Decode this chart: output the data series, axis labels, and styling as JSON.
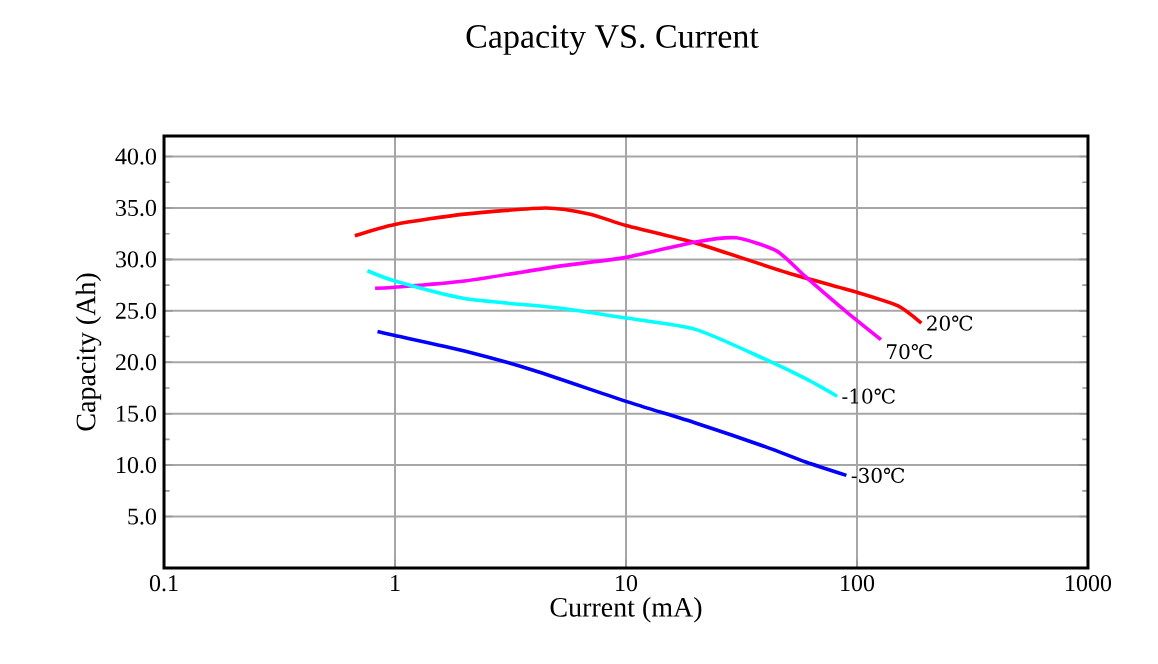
{
  "chart_data": {
    "type": "line",
    "title": "Capacity VS. Current",
    "xlabel": "Current (mA)",
    "ylabel": "Capacity (Ah)",
    "log": "x",
    "grid": true,
    "marker": "none",
    "line_style": "solid",
    "xlim": [
      0.1,
      1000
    ],
    "xticks": [
      0.1,
      1,
      10,
      100,
      1000
    ],
    "ylim": [
      0,
      42
    ],
    "yticks": [
      {
        "value": 5,
        "label": "5.0"
      },
      {
        "value": 10,
        "label": "10.0"
      },
      {
        "value": 15,
        "label": "15.0"
      },
      {
        "value": 20,
        "label": "20.0"
      },
      {
        "value": 25,
        "label": "25.0"
      },
      {
        "value": 30,
        "label": "30.0"
      },
      {
        "value": 35,
        "label": "35.0"
      },
      {
        "value": 40,
        "label": "40.0"
      }
    ],
    "series": [
      {
        "name": "20℃",
        "color": "#ff0000",
        "x": [
          0.67,
          1,
          2,
          4.5,
          7,
          10,
          20,
          50,
          100,
          150,
          190
        ],
        "values": [
          32.3,
          33.4,
          34.4,
          35.0,
          34.4,
          33.3,
          31.6,
          28.7,
          26.8,
          25.5,
          23.8
        ]
      },
      {
        "name": "70℃",
        "color": "#ff00ff",
        "x": [
          0.82,
          1,
          2,
          5,
          10,
          20,
          30,
          45,
          60,
          90,
          127
        ],
        "values": [
          27.2,
          27.3,
          27.9,
          29.3,
          30.2,
          31.7,
          32.1,
          30.8,
          28.3,
          24.9,
          22.2
        ]
      },
      {
        "name": "-10℃",
        "color": "#00ffff",
        "x": [
          0.76,
          1,
          2,
          5,
          10,
          20,
          40,
          60,
          82
        ],
        "values": [
          28.9,
          27.9,
          26.2,
          25.3,
          24.3,
          23.2,
          20.3,
          18.4,
          16.7
        ]
      },
      {
        "name": "-30℃",
        "color": "#0000ff",
        "x": [
          0.84,
          1,
          2,
          4,
          10,
          20,
          40,
          60,
          90
        ],
        "values": [
          23.0,
          22.6,
          21.1,
          19.2,
          16.2,
          14.1,
          11.8,
          10.3,
          9.0
        ]
      }
    ]
  }
}
